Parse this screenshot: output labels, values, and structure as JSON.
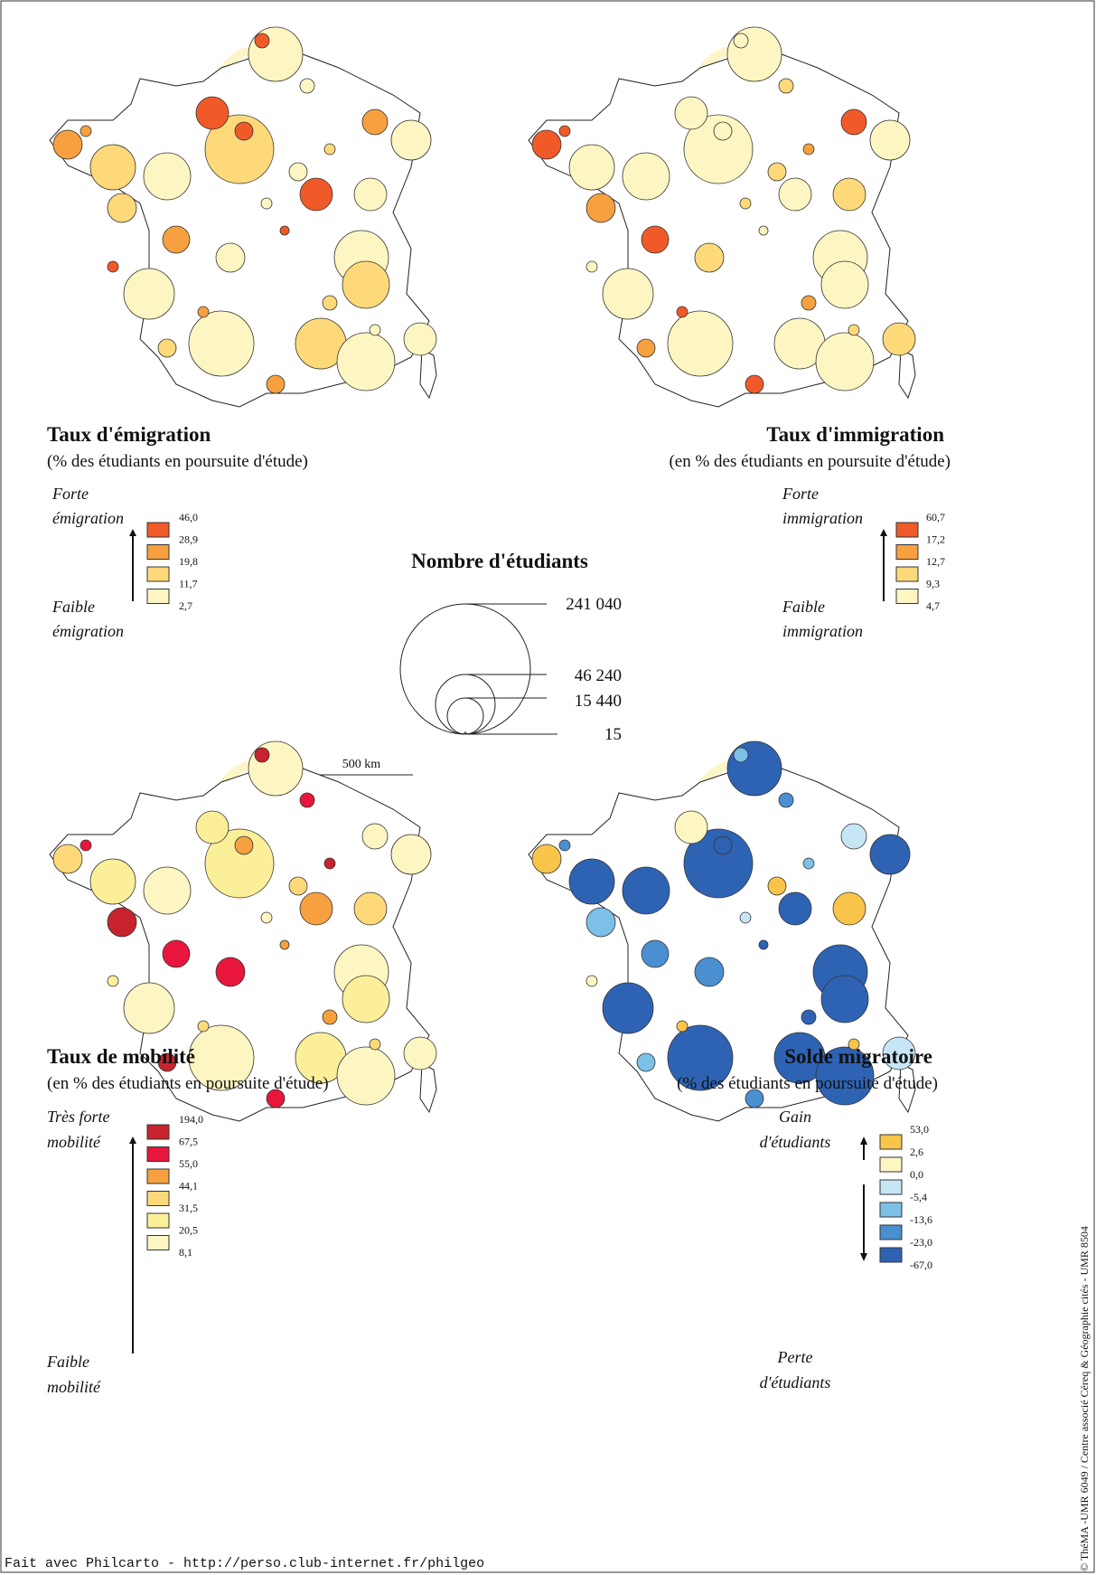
{
  "maps": [
    {
      "title": "Taux d'émigration",
      "subtitle": "(% des étudiants en poursuite d'étude)",
      "legend_top": [
        "Forte",
        "émigration"
      ],
      "legend_bottom": [
        "Faible",
        "émigration"
      ],
      "classes": [
        "46,0",
        "28,9",
        "19,8",
        "11,7",
        "2,7"
      ]
    },
    {
      "title": "Taux d'immigration",
      "subtitle": "(en % des étudiants en poursuite d'étude)",
      "legend_top": [
        "Forte",
        "immigration"
      ],
      "legend_bottom": [
        "Faible",
        "immigration"
      ],
      "classes": [
        "60,7",
        "17,2",
        "12,7",
        "9,3",
        "4,7"
      ]
    },
    {
      "title": "Taux de mobilité",
      "subtitle": "(en % des étudiants en poursuite d'étude)",
      "legend_top": [
        "Très forte",
        "mobilité"
      ],
      "legend_bottom": [
        "Faible",
        "mobilité"
      ],
      "classes": [
        "194,0",
        "67,5",
        "55,0",
        "44,1",
        "31,5",
        "20,5",
        "8,1"
      ]
    },
    {
      "title": "Solde migratoire",
      "subtitle": "(% des étudiants en poursuite d'étude)",
      "legend_top": [
        "Gain",
        "d'étudiants"
      ],
      "legend_bottom": [
        "Perte",
        "d'étudiants"
      ],
      "classes": [
        "53,0",
        "2,6",
        "0,0",
        "-5,4",
        "-13,6",
        "-23,0",
        "-67,0"
      ]
    }
  ],
  "size_legend": {
    "title": "Nombre d'étudiants",
    "labels": [
      "241 040",
      "46 240",
      "15 440",
      "15"
    ]
  },
  "scale": "500 km",
  "footer": "Fait avec Philcarto - http://perso.club-internet.fr/philgeo",
  "credit": "© ThéMA -UMR 6049 / Centre associé Céreq & Géographie cités - UMR 8504"
}
